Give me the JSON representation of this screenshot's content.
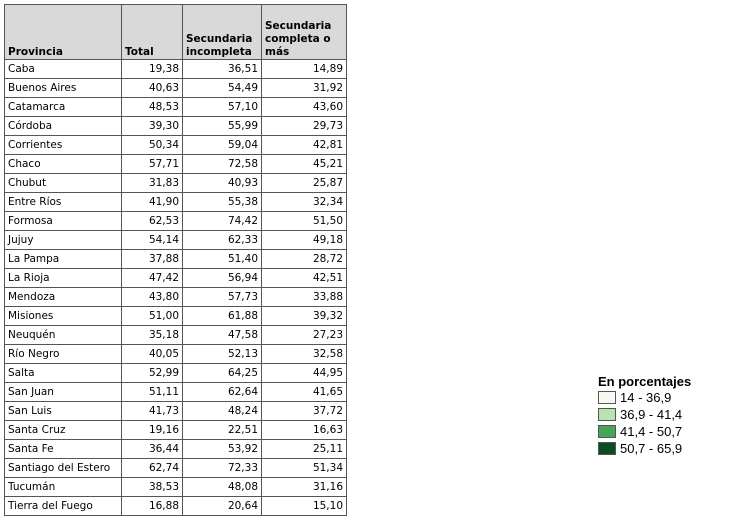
{
  "table": {
    "headers": [
      "Provincia",
      "Total",
      "Secundaria incompleta",
      "Secundaria completa o más"
    ],
    "rows": [
      [
        "Caba",
        "19,38",
        "36,51",
        "14,89"
      ],
      [
        "Buenos Aires",
        "40,63",
        "54,49",
        "31,92"
      ],
      [
        "Catamarca",
        "48,53",
        "57,10",
        "43,60"
      ],
      [
        "Córdoba",
        "39,30",
        "55,99",
        "29,73"
      ],
      [
        "Corrientes",
        "50,34",
        "59,04",
        "42,81"
      ],
      [
        "Chaco",
        "57,71",
        "72,58",
        "45,21"
      ],
      [
        "Chubut",
        "31,83",
        "40,93",
        "25,87"
      ],
      [
        "Entre Ríos",
        "41,90",
        "55,38",
        "32,34"
      ],
      [
        "Formosa",
        "62,53",
        "74,42",
        "51,50"
      ],
      [
        "Jujuy",
        "54,14",
        "62,33",
        "49,18"
      ],
      [
        "La Pampa",
        "37,88",
        "51,40",
        "28,72"
      ],
      [
        "La Rioja",
        "47,42",
        "56,94",
        "42,51"
      ],
      [
        "Mendoza",
        "43,80",
        "57,73",
        "33,88"
      ],
      [
        "Misiones",
        "51,00",
        "61,88",
        "39,32"
      ],
      [
        "Neuquén",
        "35,18",
        "47,58",
        "27,23"
      ],
      [
        "Río Negro",
        "40,05",
        "52,13",
        "32,58"
      ],
      [
        "Salta",
        "52,99",
        "64,25",
        "44,95"
      ],
      [
        "San Juan",
        "51,11",
        "62,64",
        "41,65"
      ],
      [
        "San Luis",
        "41,73",
        "48,24",
        "37,72"
      ],
      [
        "Santa Cruz",
        "19,16",
        "22,51",
        "16,63"
      ],
      [
        "Santa Fe",
        "36,44",
        "53,92",
        "25,11"
      ],
      [
        "Santiago del Estero",
        "62,74",
        "72,33",
        "51,34"
      ],
      [
        "Tucumán",
        "38,53",
        "48,08",
        "31,16"
      ],
      [
        "Tierra del Fuego",
        "16,88",
        "20,64",
        "15,10"
      ]
    ]
  },
  "legend": {
    "title": "En porcentajes",
    "items": [
      "14 - 36,9",
      "36,9 - 41,4",
      "41,4 - 50,7",
      "50,7 - 65,9"
    ]
  }
}
